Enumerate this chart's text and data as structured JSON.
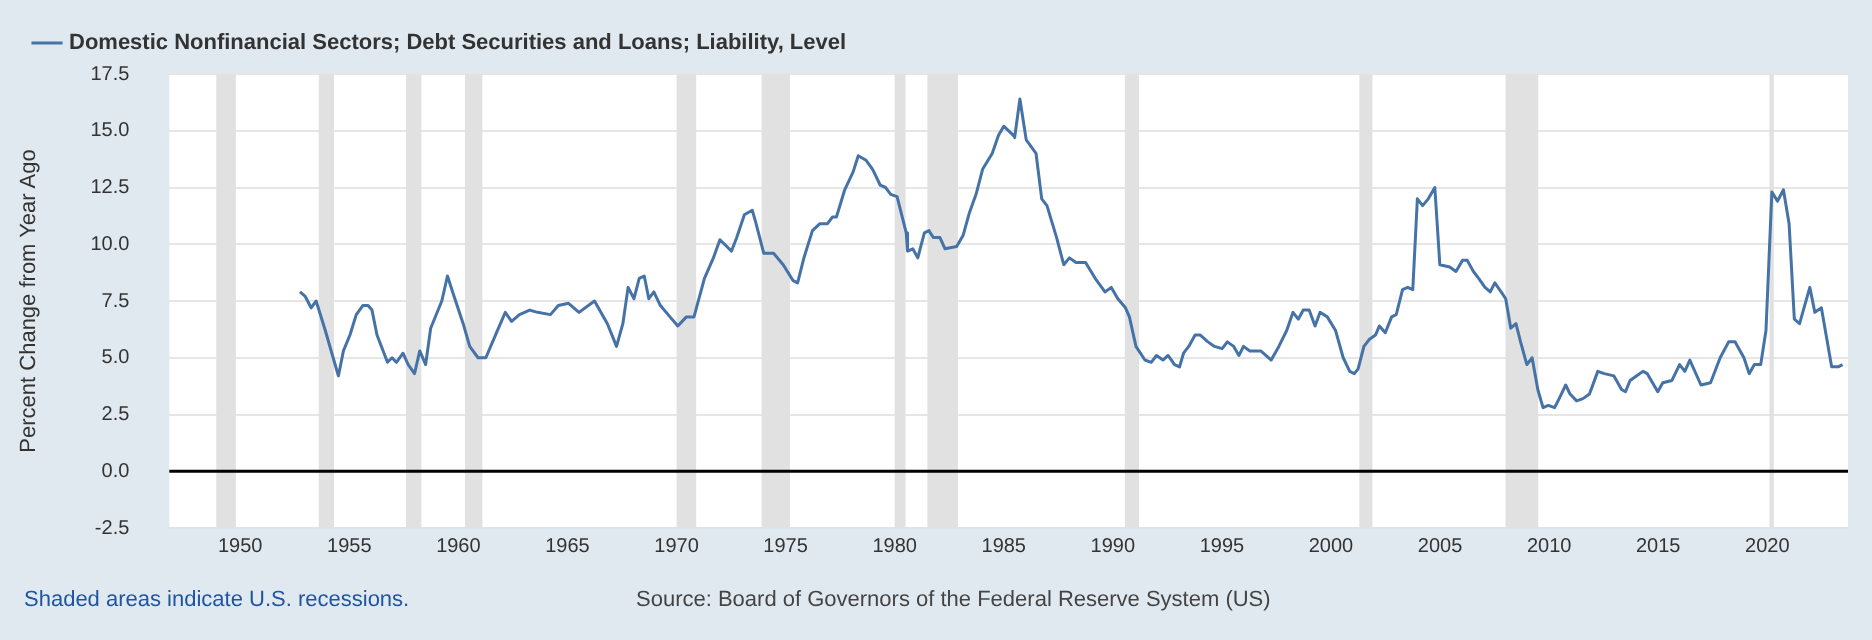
{
  "chart_data": {
    "type": "line",
    "ylabel": "Percent Change from Year Ago",
    "annotations": [
      "Shaded areas indicate U.S. recessions.",
      "Source: Board of Governors of the Federal Reserve System (US)"
    ],
    "legend": "top left",
    "grid": "y",
    "marker": "none",
    "line_style": "solid",
    "xlim": [
      1946.75,
      2023.7
    ],
    "xticks": [
      1950,
      1955,
      1960,
      1965,
      1970,
      1975,
      1980,
      1985,
      1990,
      1995,
      2000,
      2005,
      2010,
      2015,
      2020
    ],
    "ylim": [
      -2.5,
      17.5
    ],
    "yticks": [
      {
        "value": -2.5,
        "label": "-2.5"
      },
      {
        "value": 0,
        "label": "0.0"
      },
      2.5,
      {
        "value": 5,
        "label": "5.0"
      },
      7.5,
      {
        "value": 10,
        "label": "10.0"
      },
      12.5,
      {
        "value": 15,
        "label": "15.0"
      },
      17.5
    ],
    "ref_lines": [
      {
        "axis": "y",
        "value": 0,
        "color": "#000000",
        "line_style": "solid"
      }
    ],
    "bands": [
      {
        "axis": "x",
        "from": 1948.9,
        "to": 1949.8,
        "color": "#e1e1e1"
      },
      {
        "axis": "x",
        "from": 1953.6,
        "to": 1954.3,
        "color": "#e1e1e1"
      },
      {
        "axis": "x",
        "from": 1957.6,
        "to": 1958.3,
        "color": "#e1e1e1"
      },
      {
        "axis": "x",
        "from": 1960.3,
        "to": 1961.1,
        "color": "#e1e1e1"
      },
      {
        "axis": "x",
        "from": 1970.0,
        "to": 1970.9,
        "color": "#e1e1e1"
      },
      {
        "axis": "x",
        "from": 1973.9,
        "to": 1975.2,
        "color": "#e1e1e1"
      },
      {
        "axis": "x",
        "from": 1980.0,
        "to": 1980.5,
        "color": "#e1e1e1"
      },
      {
        "axis": "x",
        "from": 1981.5,
        "to": 1982.9,
        "color": "#e1e1e1"
      },
      {
        "axis": "x",
        "from": 1990.55,
        "to": 1991.2,
        "color": "#e1e1e1"
      },
      {
        "axis": "x",
        "from": 2001.3,
        "to": 2001.9,
        "color": "#e1e1e1"
      },
      {
        "axis": "x",
        "from": 2008.0,
        "to": 2009.5,
        "color": "#e1e1e1"
      },
      {
        "axis": "x",
        "from": 2020.1,
        "to": 2020.3,
        "color": "#e1e1e1"
      }
    ],
    "series": [
      {
        "name": "Domestic Nonfinancial Sectors; Debt Securities and Loans; Liability, Level",
        "color": "#4572a7",
        "x": [
          1952.74,
          1952.98,
          1953.25,
          1953.48,
          1953.9,
          1954.2,
          1954.5,
          1954.73,
          1955.03,
          1955.32,
          1955.62,
          1955.86,
          1956.04,
          1956.27,
          1956.75,
          1956.96,
          1957.16,
          1957.46,
          1957.7,
          1957.99,
          1958.23,
          1958.5,
          1958.73,
          1959.24,
          1959.5,
          1959.77,
          1960.22,
          1960.52,
          1960.9,
          1961.26,
          1961.7,
          1962.15,
          1962.44,
          1962.8,
          1963.27,
          1963.63,
          1964.22,
          1964.58,
          1965.05,
          1965.53,
          1966.24,
          1966.83,
          1967.25,
          1967.54,
          1967.78,
          1968.05,
          1968.29,
          1968.52,
          1968.73,
          1968.96,
          1969.26,
          1969.7,
          1970.06,
          1970.45,
          1970.8,
          1971.28,
          1971.69,
          1971.99,
          1972.52,
          1972.76,
          1973.11,
          1973.47,
          1973.65,
          1974.0,
          1974.45,
          1974.89,
          1975.34,
          1975.55,
          1975.84,
          1976.23,
          1976.56,
          1976.91,
          1977.15,
          1977.33,
          1977.71,
          1978.1,
          1978.33,
          1978.69,
          1978.99,
          1979.34,
          1979.58,
          1979.82,
          1980.11,
          1980.53,
          1980.59,
          1980.83,
          1981.06,
          1981.36,
          1981.57,
          1981.77,
          1982.07,
          1982.31,
          1982.84,
          1983.14,
          1983.43,
          1983.73,
          1984.03,
          1984.47,
          1984.76,
          1985.0,
          1985.44,
          1985.5,
          1985.74,
          1986.03,
          1986.48,
          1986.74,
          1986.98,
          1987.42,
          1987.75,
          1988.01,
          1988.31,
          1988.75,
          1989.19,
          1989.64,
          1989.93,
          1990.23,
          1990.58,
          1990.76,
          1991.06,
          1991.47,
          1991.76,
          1992.0,
          1992.3,
          1992.53,
          1992.83,
          1993.06,
          1993.24,
          1993.48,
          1993.77,
          1994.01,
          1994.36,
          1994.66,
          1995.01,
          1995.25,
          1995.54,
          1995.78,
          1995.99,
          1996.28,
          1996.78,
          1997.26,
          1997.61,
          1997.97,
          1998.26,
          1998.5,
          1998.73,
          1999.0,
          1999.27,
          1999.5,
          1999.83,
          2000.21,
          2000.56,
          2000.86,
          2001.07,
          2001.24,
          2001.51,
          2001.75,
          2002.04,
          2002.22,
          2002.49,
          2002.78,
          2002.99,
          2003.28,
          2003.52,
          2003.75,
          2003.96,
          2004.2,
          2004.46,
          2004.76,
          2004.99,
          2005.44,
          2005.73,
          2006.03,
          2006.24,
          2006.53,
          2006.77,
          2007.06,
          2007.3,
          2007.51,
          2007.8,
          2008.01,
          2008.24,
          2008.48,
          2008.69,
          2008.98,
          2009.22,
          2009.48,
          2009.72,
          2009.96,
          2010.25,
          2010.46,
          2010.76,
          2010.96,
          2011.26,
          2011.55,
          2011.85,
          2012.23,
          2012.53,
          2012.97,
          2013.32,
          2013.5,
          2013.71,
          2014.0,
          2014.3,
          2014.5,
          2014.98,
          2015.21,
          2015.63,
          2015.98,
          2016.22,
          2016.45,
          2016.96,
          2017.4,
          2017.84,
          2018.23,
          2018.52,
          2018.93,
          2019.17,
          2019.41,
          2019.7,
          2019.94,
          2020.21,
          2020.47,
          2020.74,
          2021.0,
          2021.24,
          2021.48,
          2021.95,
          2022.18,
          2022.48,
          2022.95,
          2023.25,
          2023.45
        ],
        "values": [
          7.9,
          7.7,
          7.2,
          7.5,
          6.2,
          5.2,
          4.2,
          5.3,
          6.0,
          6.9,
          7.3,
          7.3,
          7.1,
          6.0,
          4.8,
          5.0,
          4.8,
          5.2,
          4.7,
          4.3,
          5.3,
          4.7,
          6.3,
          7.5,
          8.6,
          7.8,
          6.5,
          5.5,
          5.0,
          5.0,
          6.0,
          7.0,
          6.6,
          6.9,
          7.1,
          7.0,
          6.9,
          7.3,
          7.4,
          7.0,
          7.5,
          6.5,
          5.5,
          6.5,
          8.1,
          7.6,
          8.5,
          8.6,
          7.6,
          7.9,
          7.3,
          6.8,
          6.4,
          6.8,
          6.8,
          8.5,
          9.4,
          10.2,
          9.7,
          10.3,
          11.3,
          11.5,
          10.9,
          9.6,
          9.6,
          9.1,
          8.4,
          8.3,
          9.4,
          10.6,
          10.9,
          10.9,
          11.2,
          11.2,
          12.4,
          13.2,
          13.9,
          13.7,
          13.3,
          12.6,
          12.5,
          12.2,
          12.1,
          10.5,
          9.7,
          9.8,
          9.4,
          10.5,
          10.6,
          10.3,
          10.3,
          9.8,
          9.9,
          10.4,
          11.4,
          12.2,
          13.3,
          14.0,
          14.8,
          15.2,
          14.8,
          14.7,
          16.4,
          14.6,
          14.0,
          12.0,
          11.7,
          10.3,
          9.1,
          9.4,
          9.2,
          9.2,
          8.5,
          7.9,
          8.1,
          7.6,
          7.2,
          6.8,
          5.5,
          4.9,
          4.8,
          5.1,
          4.9,
          5.1,
          4.7,
          4.6,
          5.2,
          5.5,
          6.0,
          6.0,
          5.7,
          5.5,
          5.4,
          5.7,
          5.5,
          5.1,
          5.5,
          5.3,
          5.3,
          4.9,
          5.5,
          6.2,
          7.0,
          6.7,
          7.1,
          7.1,
          6.4,
          7.0,
          6.8,
          6.2,
          5.0,
          4.4,
          4.3,
          4.5,
          5.5,
          5.8,
          6.0,
          6.4,
          6.1,
          6.8,
          6.9,
          8.0,
          8.1,
          8.0,
          12.0,
          11.7,
          12.0,
          12.5,
          9.1,
          9.0,
          8.8,
          9.3,
          9.3,
          8.8,
          8.5,
          8.1,
          7.9,
          8.3,
          7.9,
          7.6,
          6.3,
          6.5,
          5.7,
          4.7,
          5.0,
          3.6,
          2.8,
          2.9,
          2.8,
          3.2,
          3.8,
          3.4,
          3.1,
          3.2,
          3.4,
          4.4,
          4.3,
          4.2,
          3.6,
          3.5,
          4.0,
          4.2,
          4.4,
          4.3,
          3.5,
          3.9,
          4.0,
          4.7,
          4.4,
          4.9,
          3.8,
          3.9,
          5.0,
          5.7,
          5.7,
          5.0,
          4.3,
          4.7,
          4.7,
          6.2,
          12.3,
          11.9,
          12.4,
          10.9,
          6.7,
          6.5,
          8.1,
          7.0,
          7.2,
          4.6,
          4.6,
          4.7
        ]
      }
    ]
  }
}
